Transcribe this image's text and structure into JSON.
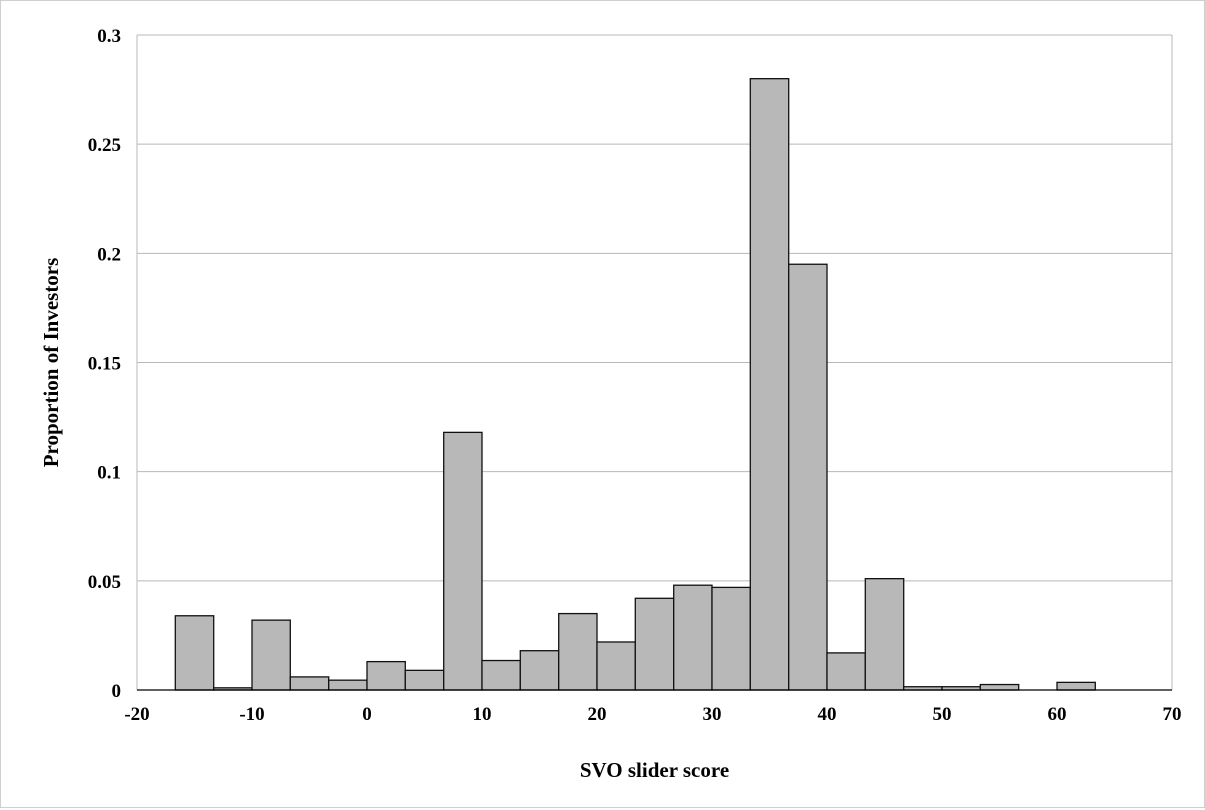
{
  "chart_data": {
    "type": "bar",
    "title": "",
    "xlabel": "SVO slider score",
    "ylabel": "Proportion of Investors",
    "xlim": [
      -20,
      70
    ],
    "ylim": [
      0,
      0.3
    ],
    "x_ticks": [
      "-20",
      "-10",
      "0",
      "10",
      "20",
      "30",
      "40",
      "50",
      "60",
      "70"
    ],
    "y_ticks": [
      "0",
      "0.05",
      "0.1",
      "0.15",
      "0.2",
      "0.25",
      "0.3"
    ],
    "grid": true,
    "bin_width": 3.33,
    "bar_color": "#b8b8b8",
    "bins": [
      {
        "x0": -16.67,
        "x1": -13.33,
        "value": 0.034
      },
      {
        "x0": -13.33,
        "x1": -10.0,
        "value": 0.001
      },
      {
        "x0": -10.0,
        "x1": -6.67,
        "value": 0.032
      },
      {
        "x0": -6.67,
        "x1": -3.33,
        "value": 0.006
      },
      {
        "x0": -3.33,
        "x1": 0.0,
        "value": 0.0045
      },
      {
        "x0": 0.0,
        "x1": 3.33,
        "value": 0.013
      },
      {
        "x0": 3.33,
        "x1": 6.67,
        "value": 0.009
      },
      {
        "x0": 6.67,
        "x1": 10.0,
        "value": 0.118
      },
      {
        "x0": 10.0,
        "x1": 13.33,
        "value": 0.0135
      },
      {
        "x0": 13.33,
        "x1": 16.67,
        "value": 0.018
      },
      {
        "x0": 16.67,
        "x1": 20.0,
        "value": 0.035
      },
      {
        "x0": 20.0,
        "x1": 23.33,
        "value": 0.022
      },
      {
        "x0": 23.33,
        "x1": 26.67,
        "value": 0.042
      },
      {
        "x0": 26.67,
        "x1": 30.0,
        "value": 0.048
      },
      {
        "x0": 30.0,
        "x1": 33.33,
        "value": 0.047
      },
      {
        "x0": 33.33,
        "x1": 36.67,
        "value": 0.28
      },
      {
        "x0": 36.67,
        "x1": 40.0,
        "value": 0.195
      },
      {
        "x0": 40.0,
        "x1": 43.33,
        "value": 0.017
      },
      {
        "x0": 43.33,
        "x1": 46.67,
        "value": 0.051
      },
      {
        "x0": 46.67,
        "x1": 50.0,
        "value": 0.0015
      },
      {
        "x0": 50.0,
        "x1": 53.33,
        "value": 0.0015
      },
      {
        "x0": 53.33,
        "x1": 56.67,
        "value": 0.0025
      },
      {
        "x0": 56.67,
        "x1": 60.0,
        "value": 0.0
      },
      {
        "x0": 60.0,
        "x1": 63.33,
        "value": 0.0035
      },
      {
        "x0": 63.33,
        "x1": 66.67,
        "value": 0.0
      },
      {
        "x0": 66.67,
        "x1": 70.0,
        "value": 0.0
      }
    ]
  }
}
